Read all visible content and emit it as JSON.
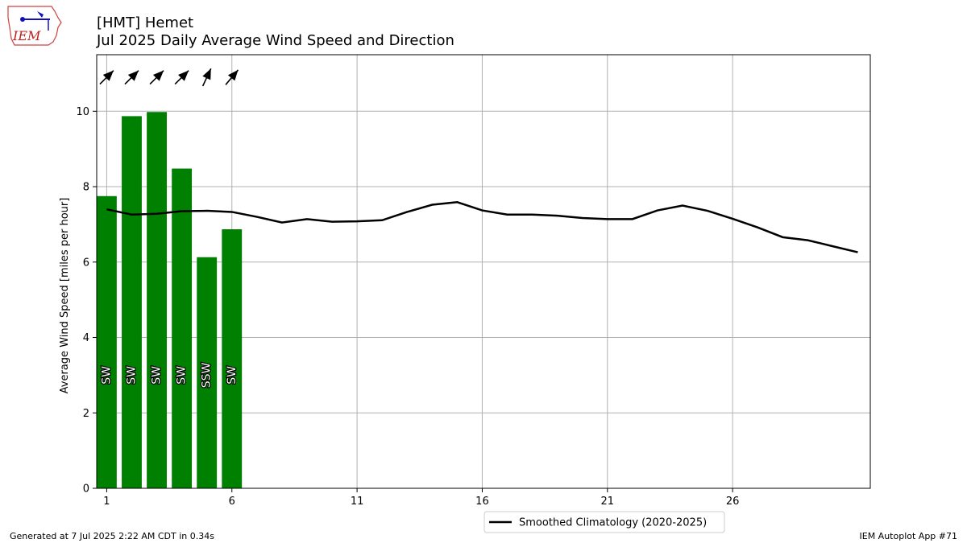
{
  "header": {
    "title_line1": "[HMT] Hemet",
    "title_line2": "Jul 2025 Daily Average Wind Speed and Direction"
  },
  "logo": {
    "text": "IEM"
  },
  "footer": {
    "left": "Generated at 7 Jul 2025 2:22 AM CDT in 0.34s",
    "right": "IEM Autoplot App #71"
  },
  "chart_data": {
    "type": "bar",
    "ylabel": "Average Wind Speed [miles per hour]",
    "xlabel": "",
    "xlim": [
      0.6,
      31.5
    ],
    "ylim": [
      0,
      11.5
    ],
    "xticks": [
      1,
      6,
      11,
      16,
      21,
      26
    ],
    "yticks": [
      0,
      2,
      4,
      6,
      8,
      10
    ],
    "grid": true,
    "bar_color": "#008000",
    "line_color": "#000000",
    "bars": {
      "days": [
        1,
        2,
        3,
        4,
        5,
        6
      ],
      "values": [
        7.75,
        9.87,
        9.98,
        8.48,
        6.13,
        6.87
      ],
      "direction_labels": [
        "SW",
        "SW",
        "SW",
        "SW",
        "SSW",
        "SW"
      ],
      "direction_degrees": [
        225,
        225,
        225,
        225,
        205,
        220
      ]
    },
    "series": [
      {
        "name": "Smoothed Climatology (2020-2025)",
        "x": [
          1,
          2,
          3,
          4,
          5,
          6,
          7,
          8,
          9,
          10,
          11,
          12,
          13,
          14,
          15,
          16,
          17,
          18,
          19,
          20,
          21,
          22,
          23,
          24,
          25,
          26,
          27,
          28,
          29,
          30,
          31
        ],
        "values": [
          7.4,
          7.26,
          7.28,
          7.35,
          7.36,
          7.33,
          7.2,
          7.05,
          7.14,
          7.07,
          7.08,
          7.11,
          7.33,
          7.52,
          7.59,
          7.37,
          7.26,
          7.26,
          7.23,
          7.17,
          7.14,
          7.14,
          7.37,
          7.5,
          7.36,
          7.15,
          6.92,
          6.66,
          6.58,
          6.42,
          6.26
        ]
      }
    ],
    "legend_position": "bottom-center"
  }
}
